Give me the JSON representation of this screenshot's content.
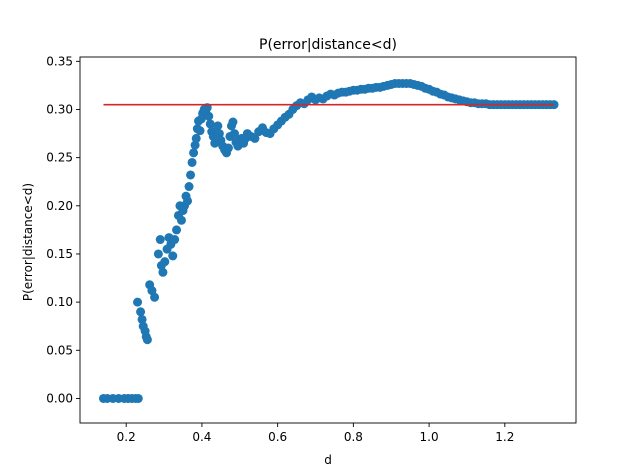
{
  "chart_data": {
    "type": "scatter",
    "title": "P(error|distance<d)",
    "xlabel": "d",
    "ylabel": "P(error|distance<d)",
    "xlim": [
      0.078,
      1.388
    ],
    "ylim": [
      -0.0255,
      0.3545
    ],
    "xticks": [
      0.2,
      0.4,
      0.6,
      0.8,
      1.0,
      1.2
    ],
    "yticks": [
      0.0,
      0.05,
      0.1,
      0.15,
      0.2,
      0.25,
      0.3,
      0.35
    ],
    "xtick_labels": [
      "0.2",
      "0.4",
      "0.6",
      "0.8",
      "1.0",
      "1.2"
    ],
    "ytick_labels": [
      "0.00",
      "0.05",
      "0.10",
      "0.15",
      "0.20",
      "0.25",
      "0.30",
      "0.35"
    ],
    "grid": false,
    "legend": "none",
    "point_color": "#1f77b4",
    "reference_line": {
      "y": 0.305,
      "x": [
        0.14,
        1.33
      ],
      "color": "#d62728"
    },
    "series": [
      {
        "points": [
          [
            0.14,
            0.0
          ],
          [
            0.15,
            0.0
          ],
          [
            0.165,
            0.0
          ],
          [
            0.18,
            0.0
          ],
          [
            0.195,
            0.0
          ],
          [
            0.205,
            0.0
          ],
          [
            0.215,
            0.0
          ],
          [
            0.225,
            0.0
          ],
          [
            0.232,
            0.0
          ],
          [
            0.23,
            0.1
          ],
          [
            0.238,
            0.09
          ],
          [
            0.242,
            0.082
          ],
          [
            0.245,
            0.075
          ],
          [
            0.25,
            0.07
          ],
          [
            0.253,
            0.064
          ],
          [
            0.256,
            0.061
          ],
          [
            0.262,
            0.118
          ],
          [
            0.268,
            0.112
          ],
          [
            0.275,
            0.105
          ],
          [
            0.285,
            0.15
          ],
          [
            0.29,
            0.165
          ],
          [
            0.293,
            0.138
          ],
          [
            0.297,
            0.131
          ],
          [
            0.302,
            0.142
          ],
          [
            0.308,
            0.155
          ],
          [
            0.313,
            0.167
          ],
          [
            0.318,
            0.16
          ],
          [
            0.323,
            0.148
          ],
          [
            0.328,
            0.165
          ],
          [
            0.333,
            0.175
          ],
          [
            0.338,
            0.19
          ],
          [
            0.342,
            0.2
          ],
          [
            0.346,
            0.185
          ],
          [
            0.35,
            0.195
          ],
          [
            0.354,
            0.2
          ],
          [
            0.358,
            0.21
          ],
          [
            0.362,
            0.205
          ],
          [
            0.366,
            0.22
          ],
          [
            0.37,
            0.232
          ],
          [
            0.374,
            0.245
          ],
          [
            0.378,
            0.255
          ],
          [
            0.382,
            0.263
          ],
          [
            0.385,
            0.27
          ],
          [
            0.388,
            0.28
          ],
          [
            0.391,
            0.288
          ],
          [
            0.395,
            0.278
          ],
          [
            0.398,
            0.29
          ],
          [
            0.402,
            0.296
          ],
          [
            0.406,
            0.3
          ],
          [
            0.41,
            0.298
          ],
          [
            0.414,
            0.302
          ],
          [
            0.418,
            0.293
          ],
          [
            0.422,
            0.285
          ],
          [
            0.426,
            0.277
          ],
          [
            0.43,
            0.272
          ],
          [
            0.434,
            0.265
          ],
          [
            0.438,
            0.274
          ],
          [
            0.442,
            0.283
          ],
          [
            0.446,
            0.275
          ],
          [
            0.45,
            0.268
          ],
          [
            0.455,
            0.262
          ],
          [
            0.46,
            0.258
          ],
          [
            0.465,
            0.255
          ],
          [
            0.47,
            0.26
          ],
          [
            0.474,
            0.272
          ],
          [
            0.478,
            0.283
          ],
          [
            0.482,
            0.287
          ],
          [
            0.486,
            0.275
          ],
          [
            0.49,
            0.266
          ],
          [
            0.495,
            0.262
          ],
          [
            0.5,
            0.268
          ],
          [
            0.505,
            0.27
          ],
          [
            0.51,
            0.265
          ],
          [
            0.515,
            0.27
          ],
          [
            0.52,
            0.275
          ],
          [
            0.53,
            0.272
          ],
          [
            0.54,
            0.27
          ],
          [
            0.55,
            0.277
          ],
          [
            0.56,
            0.281
          ],
          [
            0.57,
            0.276
          ],
          [
            0.58,
            0.275
          ],
          [
            0.59,
            0.28
          ],
          [
            0.6,
            0.284
          ],
          [
            0.61,
            0.288
          ],
          [
            0.62,
            0.292
          ],
          [
            0.63,
            0.295
          ],
          [
            0.64,
            0.3
          ],
          [
            0.65,
            0.304
          ],
          [
            0.66,
            0.307
          ],
          [
            0.67,
            0.306
          ],
          [
            0.68,
            0.31
          ],
          [
            0.69,
            0.313
          ],
          [
            0.7,
            0.31
          ],
          [
            0.71,
            0.312
          ],
          [
            0.72,
            0.311
          ],
          [
            0.73,
            0.314
          ],
          [
            0.74,
            0.316
          ],
          [
            0.75,
            0.315
          ],
          [
            0.76,
            0.317
          ],
          [
            0.77,
            0.318
          ],
          [
            0.78,
            0.318
          ],
          [
            0.79,
            0.319
          ],
          [
            0.8,
            0.32
          ],
          [
            0.81,
            0.32
          ],
          [
            0.82,
            0.321
          ],
          [
            0.83,
            0.321
          ],
          [
            0.84,
            0.322
          ],
          [
            0.85,
            0.322
          ],
          [
            0.86,
            0.323
          ],
          [
            0.87,
            0.323
          ],
          [
            0.88,
            0.324
          ],
          [
            0.89,
            0.325
          ],
          [
            0.9,
            0.326
          ],
          [
            0.91,
            0.327
          ],
          [
            0.92,
            0.327
          ],
          [
            0.93,
            0.327
          ],
          [
            0.94,
            0.327
          ],
          [
            0.95,
            0.327
          ],
          [
            0.96,
            0.326
          ],
          [
            0.97,
            0.325
          ],
          [
            0.98,
            0.324
          ],
          [
            0.99,
            0.322
          ],
          [
            1.0,
            0.321
          ],
          [
            1.01,
            0.319
          ],
          [
            1.02,
            0.318
          ],
          [
            1.03,
            0.316
          ],
          [
            1.04,
            0.315
          ],
          [
            1.05,
            0.313
          ],
          [
            1.06,
            0.312
          ],
          [
            1.07,
            0.311
          ],
          [
            1.08,
            0.31
          ],
          [
            1.09,
            0.309
          ],
          [
            1.1,
            0.308
          ],
          [
            1.11,
            0.307
          ],
          [
            1.12,
            0.307
          ],
          [
            1.13,
            0.306
          ],
          [
            1.14,
            0.306
          ],
          [
            1.15,
            0.306
          ],
          [
            1.16,
            0.305
          ],
          [
            1.17,
            0.305
          ],
          [
            1.18,
            0.305
          ],
          [
            1.19,
            0.305
          ],
          [
            1.2,
            0.305
          ],
          [
            1.21,
            0.305
          ],
          [
            1.22,
            0.305
          ],
          [
            1.23,
            0.305
          ],
          [
            1.24,
            0.305
          ],
          [
            1.25,
            0.305
          ],
          [
            1.26,
            0.305
          ],
          [
            1.27,
            0.305
          ],
          [
            1.28,
            0.305
          ],
          [
            1.29,
            0.305
          ],
          [
            1.3,
            0.305
          ],
          [
            1.31,
            0.305
          ],
          [
            1.32,
            0.305
          ],
          [
            1.33,
            0.305
          ]
        ]
      }
    ]
  }
}
